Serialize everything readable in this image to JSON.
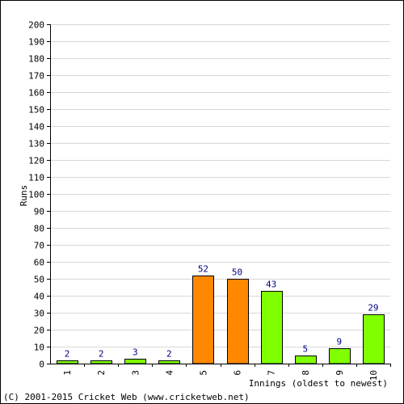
{
  "chart_data": {
    "type": "bar",
    "categories": [
      "1",
      "2",
      "3",
      "4",
      "5",
      "6",
      "7",
      "8",
      "9",
      "10"
    ],
    "values": [
      2,
      2,
      3,
      2,
      52,
      50,
      43,
      5,
      9,
      29
    ],
    "bar_colors": [
      "#80ff00",
      "#80ff00",
      "#80ff00",
      "#80ff00",
      "#ff8800",
      "#ff8800",
      "#80ff00",
      "#80ff00",
      "#80ff00",
      "#80ff00"
    ],
    "xlabel": "Innings (oldest to newest)",
    "ylabel": "Runs",
    "ylim": [
      0,
      200
    ],
    "ytick_step": 10,
    "grid": true,
    "data_label_color": "#000080",
    "grid_color": "#d8d8d8"
  },
  "footer": "(C) 2001-2015 Cricket Web (www.cricketweb.net)"
}
